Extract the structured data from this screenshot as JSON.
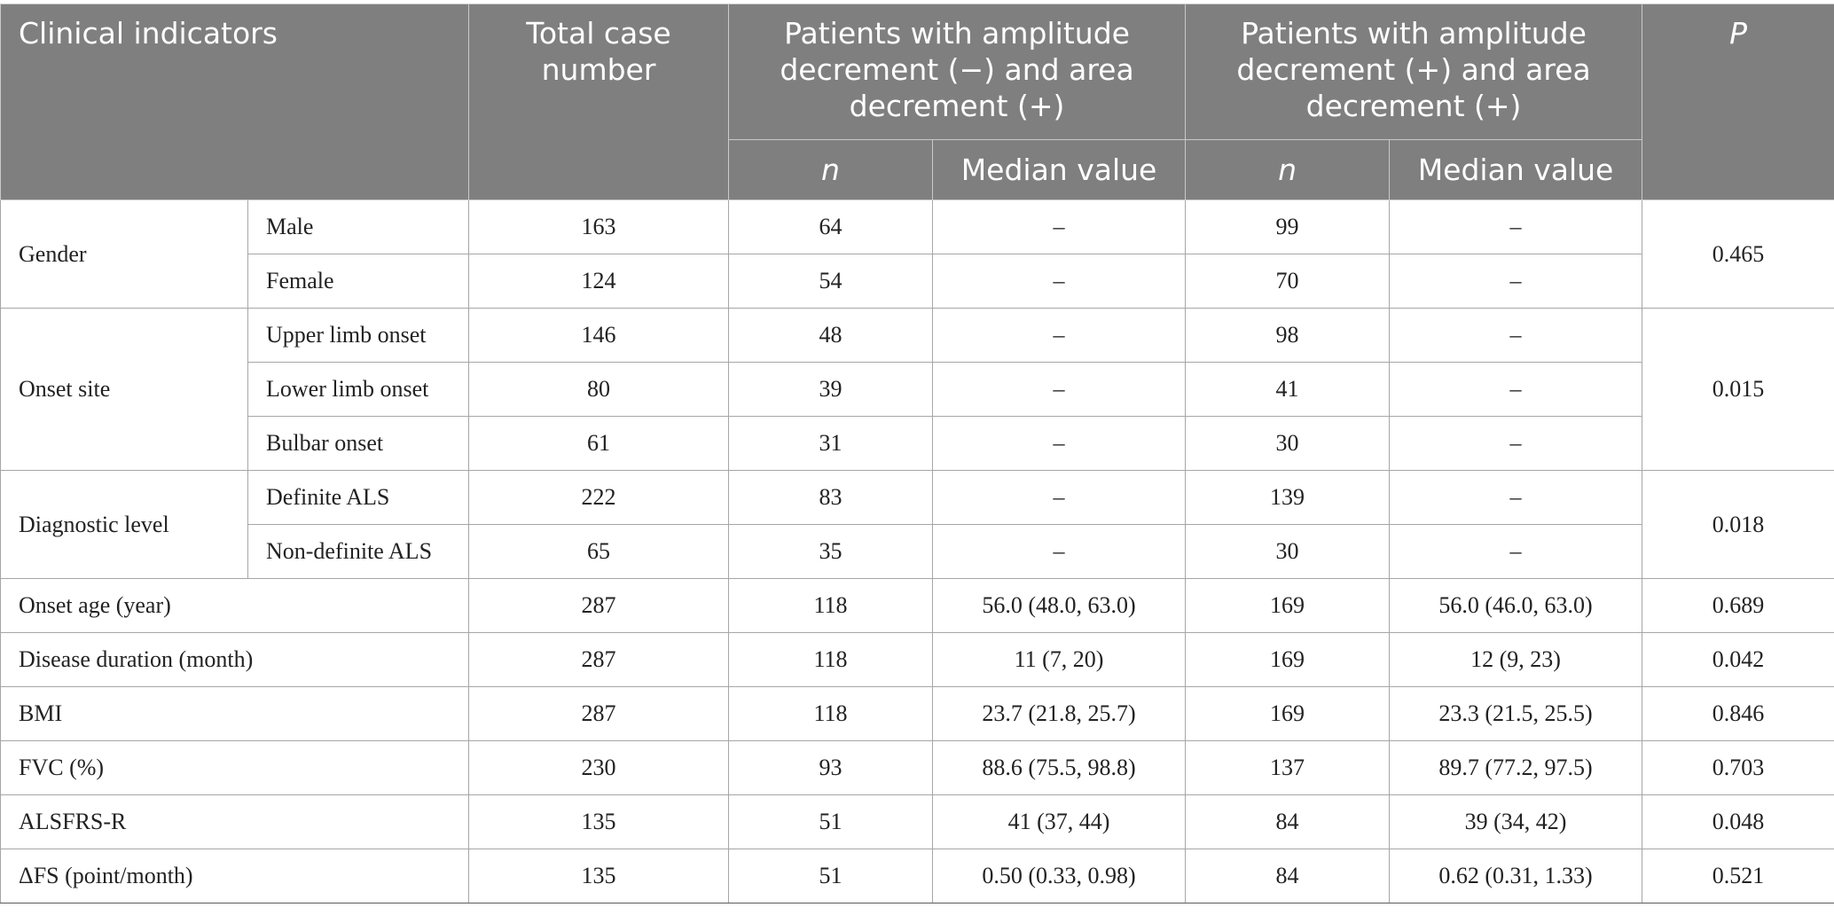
{
  "header": {
    "clinical_indicators": "Clinical indicators",
    "total_case_number": "Total case number",
    "group_a": "Patients with amplitude decrement (−) and area decrement (+)",
    "group_b": "Patients with amplitude decrement (+) and area decrement (+)",
    "p": "P",
    "n": "n",
    "median_value": "Median value"
  },
  "groups": [
    {
      "label": "Gender",
      "p": "0.465",
      "rows": [
        {
          "sub": "Male",
          "total": "163",
          "n_a": "64",
          "med_a": "–",
          "n_b": "99",
          "med_b": "–"
        },
        {
          "sub": "Female",
          "total": "124",
          "n_a": "54",
          "med_a": "–",
          "n_b": "70",
          "med_b": "–"
        }
      ]
    },
    {
      "label": "Onset site",
      "p": "0.015",
      "rows": [
        {
          "sub": "Upper limb onset",
          "total": "146",
          "n_a": "48",
          "med_a": "–",
          "n_b": "98",
          "med_b": "–"
        },
        {
          "sub": "Lower limb onset",
          "total": "80",
          "n_a": "39",
          "med_a": "–",
          "n_b": "41",
          "med_b": "–"
        },
        {
          "sub": "Bulbar onset",
          "total": "61",
          "n_a": "31",
          "med_a": "–",
          "n_b": "30",
          "med_b": "–"
        }
      ]
    },
    {
      "label": "Diagnostic level",
      "p": "0.018",
      "rows": [
        {
          "sub": "Definite ALS",
          "total": "222",
          "n_a": "83",
          "med_a": "–",
          "n_b": "139",
          "med_b": "–"
        },
        {
          "sub": "Non-definite ALS",
          "total": "65",
          "n_a": "35",
          "med_a": "–",
          "n_b": "30",
          "med_b": "–"
        }
      ]
    }
  ],
  "rows": [
    {
      "label": "Onset age (year)",
      "total": "287",
      "n_a": "118",
      "med_a": "56.0 (48.0, 63.0)",
      "n_b": "169",
      "med_b": "56.0 (46.0, 63.0)",
      "p": "0.689"
    },
    {
      "label": "Disease duration (month)",
      "total": "287",
      "n_a": "118",
      "med_a": "11 (7, 20)",
      "n_b": "169",
      "med_b": "12 (9, 23)",
      "p": "0.042"
    },
    {
      "label": "BMI",
      "total": "287",
      "n_a": "118",
      "med_a": "23.7 (21.8, 25.7)",
      "n_b": "169",
      "med_b": "23.3 (21.5, 25.5)",
      "p": "0.846"
    },
    {
      "label": "FVC (%)",
      "total": "230",
      "n_a": "93",
      "med_a": "88.6 (75.5, 98.8)",
      "n_b": "137",
      "med_b": "89.7 (77.2, 97.5)",
      "p": "0.703"
    },
    {
      "label": "ALSFRS-R",
      "total": "135",
      "n_a": "51",
      "med_a": "41 (37, 44)",
      "n_b": "84",
      "med_b": "39 (34, 42)",
      "p": "0.048"
    },
    {
      "label": "ΔFS (point/month)",
      "total": "135",
      "n_a": "51",
      "med_a": "0.50 (0.33, 0.98)",
      "n_b": "84",
      "med_b": "0.62 (0.31, 1.33)",
      "p": "0.521"
    }
  ]
}
